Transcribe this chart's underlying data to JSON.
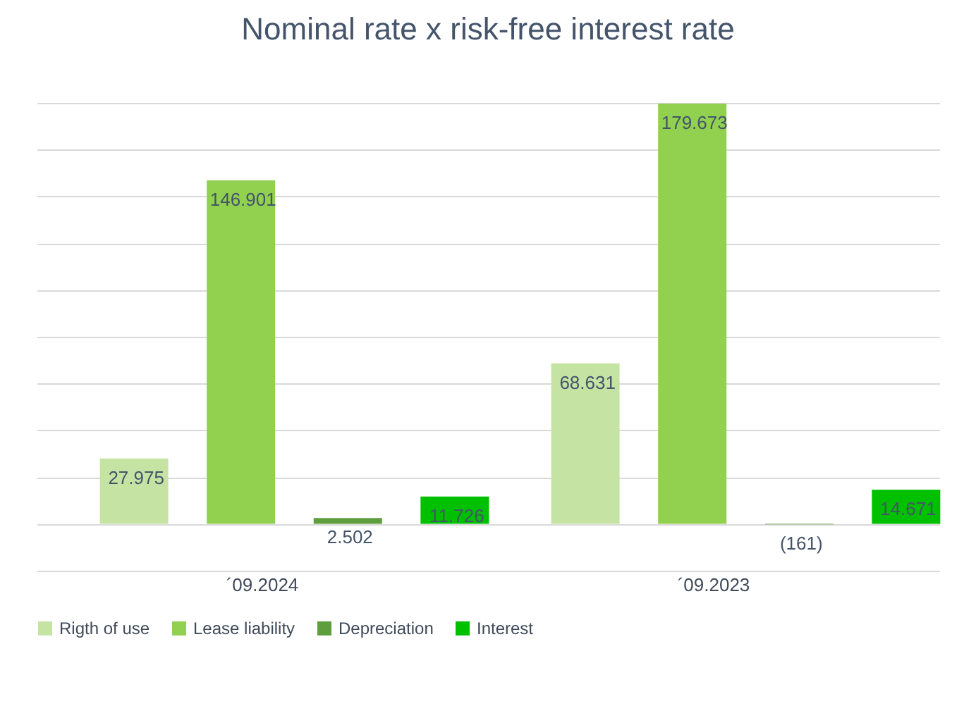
{
  "chart_data": {
    "type": "bar",
    "title": "Nominal rate x risk-free interest rate",
    "categories": [
      "´09.2024",
      "´09.2023"
    ],
    "series": [
      {
        "name": "Rigth of use",
        "color": "#c5e4a4",
        "values": [
          27975,
          68631
        ],
        "value_labels": [
          "27.975",
          "68.631"
        ]
      },
      {
        "name": "Lease liability",
        "color": "#92d050",
        "values": [
          146901,
          179673
        ],
        "value_labels": [
          "146.901",
          "179.673"
        ]
      },
      {
        "name": "Depreciation",
        "color": "#5e9e3c",
        "values": [
          2502,
          -161
        ],
        "value_labels": [
          "2.502",
          "(161)"
        ]
      },
      {
        "name": "Interest",
        "color": "#00c000",
        "values": [
          11726,
          14671
        ],
        "value_labels": [
          "11.726",
          "14.671"
        ]
      }
    ],
    "grid": "y",
    "legend": "bottom",
    "tick_labels": "x"
  }
}
